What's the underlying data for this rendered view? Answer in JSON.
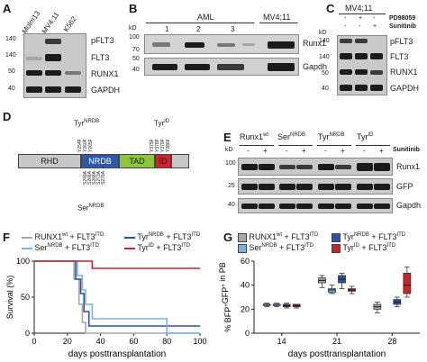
{
  "panels": {
    "A": {
      "letter": "A",
      "lanes": [
        "Molm13",
        "MV4;11",
        "K562"
      ],
      "rows": [
        "pFLT3",
        "FLT3",
        "RUNX1",
        "GAPDH"
      ],
      "mw": [
        "140",
        "140",
        "50",
        "40"
      ]
    },
    "B": {
      "letter": "B",
      "group_left": "AML",
      "group_right": "MV4;11",
      "kd": "kD",
      "lane_numbers": [
        "1",
        "2",
        "3"
      ],
      "rows": [
        "Runx1",
        "Gapdh"
      ],
      "mw": [
        "100",
        "70",
        "50",
        "40"
      ]
    },
    "C": {
      "letter": "C",
      "group": "MV4;11",
      "kd": "kD",
      "treatments": [
        {
          "name": "PD98059",
          "signs": [
            "-",
            "+",
            "-"
          ]
        },
        {
          "name": "Sunitinib",
          "signs": [
            "-",
            "-",
            "+"
          ]
        }
      ],
      "rows": [
        "pFLT3",
        "FLT3",
        "RUNX1",
        "GAPDH"
      ],
      "mw": [
        "140",
        "140",
        "50",
        "40"
      ]
    },
    "D": {
      "letter": "D",
      "domains": [
        "RHD",
        "NRDB",
        "TAD",
        "ID"
      ],
      "top_label_nrdb": "Tyr",
      "top_label_nrdb_sup": "NRDB",
      "top_label_id": "Tyr",
      "top_label_id_sup": "ID",
      "bottom_label": "Ser",
      "bottom_label_sup": "NRDB",
      "nrdb_tyr_sites": [
        "Y254F",
        "Y260F",
        "Y265F"
      ],
      "id_tyr_sites": [
        "Y375F",
        "Y378F",
        "Y379F",
        "Y386F"
      ],
      "nrdb_ser_sites": [
        "S249A",
        "S266A",
        "S268A",
        "S273A",
        "S276A"
      ]
    },
    "E": {
      "letter": "E",
      "kd": "kD",
      "groups": [
        {
          "name": "Runx1",
          "sup": "wt"
        },
        {
          "name": "Ser",
          "sup": "NRDB"
        },
        {
          "name": "Tyr",
          "sup": "NRDB"
        },
        {
          "name": "Tyr",
          "sup": "ID"
        }
      ],
      "signs": [
        "-",
        "+",
        "-",
        "+",
        "-",
        "+",
        "-",
        "+"
      ],
      "treatment": "Sunitinib",
      "rows": [
        "Runx1",
        "GFP",
        "Gapdh"
      ],
      "mw": [
        "100",
        "25",
        "40"
      ]
    },
    "F": {
      "letter": "F",
      "legend": [
        {
          "name": "RUNX1",
          "sup": "wt",
          "suffix": " + FLT3",
          "sup2": "ITD",
          "color": "#a8a8a8"
        },
        {
          "name": "Tyr",
          "sup": "NRDB",
          "suffix": " + FLT3",
          "sup2": "ITD",
          "color": "#2a54a3"
        },
        {
          "name": "Ser",
          "sup": "NRDB",
          "suffix": " + FLT3",
          "sup2": "ITD",
          "color": "#79b4e3"
        },
        {
          "name": "Tyr",
          "sup": "ID",
          "suffix": " + FLT3",
          "sup2": "ITD",
          "color": "#c4262e"
        }
      ],
      "ylabel": "Survival (%)",
      "xlabel": "days posttransplantation",
      "xticks": [
        "0",
        "20",
        "40",
        "60",
        "80",
        "100"
      ],
      "yticks": [
        "0",
        "50",
        "100"
      ]
    },
    "G": {
      "letter": "G",
      "legend": [
        {
          "name": "RUNX1",
          "sup": "wt",
          "suffix": " + FLT3",
          "sup2": "ITD",
          "color": "#a8a8a8"
        },
        {
          "name": "Tyr",
          "sup": "NRDB",
          "suffix": " + FLT3",
          "sup2": "ITD",
          "color": "#2a54a3"
        },
        {
          "name": "Ser",
          "sup": "NRDB",
          "suffix": " + FLT3",
          "sup2": "ITD",
          "color": "#79b4e3"
        },
        {
          "name": "Tyr",
          "sup": "ID",
          "suffix": " + FLT3",
          "sup2": "ITD",
          "color": "#c4262e"
        }
      ],
      "ylabel_parts": [
        "% BFP",
        "+",
        "GFP",
        "+",
        " in PB"
      ],
      "xlabel": "days posttransplantation",
      "xticks": [
        "14",
        "21",
        "28"
      ],
      "yticks": [
        "0",
        "20",
        "40",
        "60"
      ]
    }
  },
  "chart_data": [
    {
      "type": "line",
      "panel": "F",
      "ylabel": "Survival (%)",
      "xlabel": "days posttransplantation",
      "xlim": [
        0,
        100
      ],
      "ylim": [
        0,
        100
      ],
      "series": [
        {
          "name": "RUNX1wt + FLT3ITD",
          "color": "#a8a8a8",
          "steps": [
            [
              0,
              100
            ],
            [
              24,
              100
            ],
            [
              24,
              75
            ],
            [
              27,
              75
            ],
            [
              27,
              40
            ],
            [
              29,
              40
            ],
            [
              29,
              15
            ],
            [
              31,
              15
            ],
            [
              31,
              0
            ],
            [
              100,
              0
            ]
          ]
        },
        {
          "name": "TyrNRDB + FLT3ITD",
          "color": "#2a54a3",
          "steps": [
            [
              0,
              100
            ],
            [
              25,
              100
            ],
            [
              25,
              75
            ],
            [
              28,
              75
            ],
            [
              28,
              55
            ],
            [
              30,
              55
            ],
            [
              30,
              30
            ],
            [
              33,
              30
            ],
            [
              33,
              10
            ],
            [
              100,
              10
            ]
          ]
        },
        {
          "name": "SerNRDB + FLT3ITD",
          "color": "#79b4e3",
          "steps": [
            [
              0,
              100
            ],
            [
              26,
              100
            ],
            [
              26,
              80
            ],
            [
              29,
              80
            ],
            [
              29,
              60
            ],
            [
              31,
              60
            ],
            [
              31,
              40
            ],
            [
              35,
              40
            ],
            [
              35,
              20
            ],
            [
              80,
              20
            ],
            [
              80,
              0
            ],
            [
              100,
              0
            ]
          ]
        },
        {
          "name": "TyrID + FLT3ITD",
          "color": "#c4262e",
          "steps": [
            [
              0,
              100
            ],
            [
              35,
              100
            ],
            [
              35,
              90
            ],
            [
              100,
              90
            ]
          ]
        }
      ]
    },
    {
      "type": "box",
      "panel": "G",
      "ylabel": "% BFP+GFP+ in PB",
      "xlabel": "days posttransplantation",
      "categories": [
        "14",
        "21",
        "28"
      ],
      "ylim": [
        0,
        60
      ],
      "series": [
        {
          "name": "RUNX1wt + FLT3ITD",
          "color": "#a8a8a8",
          "boxes": [
            [
              22,
              23,
              24,
              24,
              25
            ],
            [
              38,
              42,
              44,
              46,
              48
            ],
            [
              17,
              20,
              22,
              24,
              26
            ]
          ]
        },
        {
          "name": "SerNRDB + FLT3ITD",
          "color": "#79b4e3",
          "boxes": [
            [
              22,
              23,
              24,
              24,
              25
            ],
            [
              33,
              34,
              36,
              37,
              40
            ],
            [
              null,
              null,
              null,
              null,
              null
            ]
          ]
        },
        {
          "name": "TyrNRDB + FLT3ITD",
          "color": "#2a54a3",
          "boxes": [
            [
              21,
              22,
              23,
              24,
              25
            ],
            [
              37,
              42,
              45,
              48,
              50
            ],
            [
              22,
              24,
              26,
              28,
              30
            ]
          ]
        },
        {
          "name": "TyrID + FLT3ITD",
          "color": "#c4262e",
          "boxes": [
            [
              21,
              22,
              23,
              24,
              24
            ],
            [
              33,
              35,
              36,
              37,
              39
            ],
            [
              30,
              33,
              40,
              50,
              55
            ]
          ]
        }
      ]
    }
  ]
}
